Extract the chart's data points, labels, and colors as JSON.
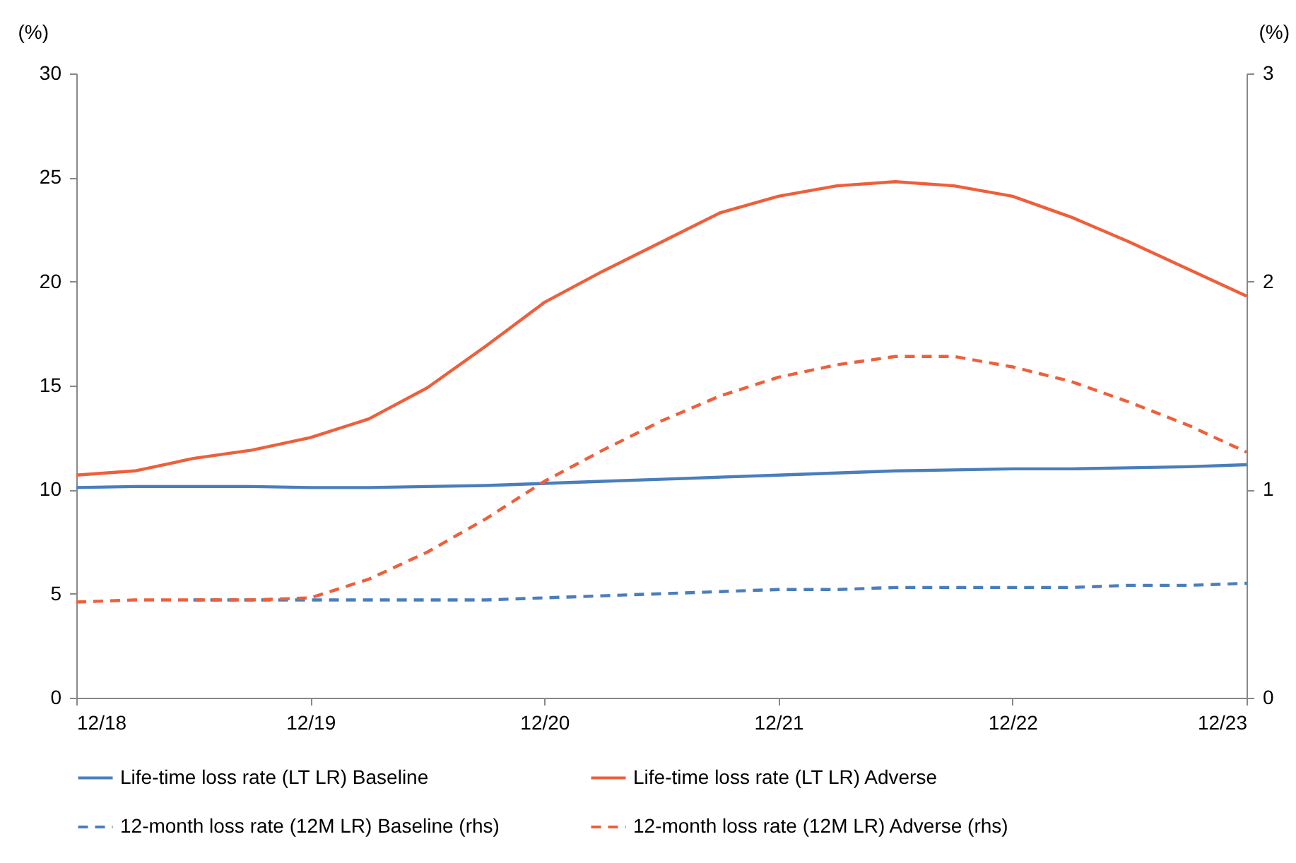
{
  "chart_data": {
    "type": "line",
    "categories": [
      "12/18",
      null,
      null,
      null,
      "12/19",
      null,
      null,
      null,
      "12/20",
      null,
      null,
      null,
      "12/21",
      null,
      null,
      null,
      "12/22",
      null,
      null,
      null,
      "12/23"
    ],
    "ylabel": "(%)",
    "y2label": "(%)",
    "ylim": [
      0,
      30
    ],
    "yticks": [
      0,
      5,
      10,
      15,
      20,
      25,
      30
    ],
    "y2lim": [
      0,
      3
    ],
    "y2ticks": [
      0,
      1,
      2,
      3
    ],
    "grid": false,
    "legend": "bottom",
    "marker": "none",
    "series": [
      {
        "name": "Life-time loss rate (LT LR) Baseline",
        "color": "#4a7ebb",
        "line_style": "solid",
        "values": [
          10.1,
          10.15,
          10.15,
          10.15,
          10.1,
          10.1,
          10.15,
          10.2,
          10.3,
          10.4,
          10.5,
          10.6,
          10.7,
          10.8,
          10.9,
          10.95,
          11.0,
          11.0,
          11.05,
          11.1,
          11.2
        ]
      },
      {
        "name": "Life-time loss rate (LT LR) Adverse",
        "color": "#ee5f3b",
        "line_style": "solid",
        "values": [
          10.7,
          10.9,
          11.5,
          11.9,
          12.5,
          13.4,
          14.9,
          16.9,
          19.0,
          20.5,
          21.9,
          23.3,
          24.1,
          24.6,
          24.8,
          24.6,
          24.1,
          23.1,
          21.9,
          20.6,
          19.3
        ]
      },
      {
        "name": "12-month loss rate (12M LR) Baseline (rhs)",
        "color": "#4a7ebb",
        "line_style": "dashed",
        "axis": "y2",
        "values": [
          null,
          null,
          0.47,
          0.47,
          0.47,
          0.47,
          0.47,
          0.47,
          0.48,
          0.49,
          0.5,
          0.51,
          0.52,
          0.52,
          0.53,
          0.53,
          0.53,
          0.53,
          0.54,
          0.54,
          0.55
        ]
      },
      {
        "name": "12-month loss rate (12M LR) Adverse (rhs)",
        "color": "#ee5f3b",
        "line_style": "dashed",
        "axis": "y2",
        "values": [
          0.46,
          0.47,
          0.47,
          0.47,
          0.48,
          0.57,
          0.7,
          0.86,
          1.04,
          1.19,
          1.33,
          1.45,
          1.54,
          1.6,
          1.64,
          1.64,
          1.59,
          1.52,
          1.42,
          1.31,
          1.18
        ]
      }
    ]
  }
}
